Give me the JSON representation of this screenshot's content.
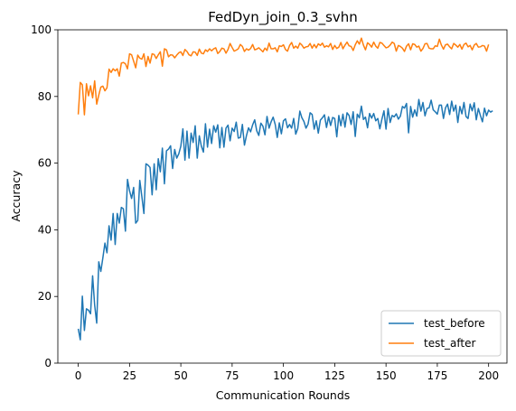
{
  "chart_data": {
    "type": "line",
    "title": "FedDyn_join_0.3_svhn",
    "xlabel": "Communication Rounds",
    "ylabel": "Accuracy",
    "xlim": [
      -9.95,
      208.95
    ],
    "ylim": [
      0,
      100
    ],
    "xticks": [
      0,
      25,
      50,
      75,
      100,
      125,
      150,
      175,
      200
    ],
    "yticks": [
      0,
      20,
      40,
      60,
      80,
      100
    ],
    "grid": false,
    "legend_position": "lower right",
    "series": [
      {
        "name": "test_before",
        "color": "#1f77b4",
        "values": [
          10.3,
          7.0,
          20.1,
          9.8,
          16.3,
          15.9,
          14.8,
          26.2,
          17.4,
          12.0,
          30.4,
          27.5,
          31.6,
          36.0,
          33.1,
          41.2,
          36.9,
          44.9,
          35.6,
          44.9,
          42.0,
          46.7,
          46.3,
          39.6,
          55.1,
          51.7,
          49.4,
          52.7,
          42.0,
          42.8,
          54.8,
          50.0,
          44.9,
          59.8,
          59.4,
          58.7,
          50.5,
          59.8,
          52.0,
          61.3,
          57.4,
          64.5,
          53.8,
          63.7,
          64.2,
          65.2,
          58.4,
          64.1,
          61.5,
          62.8,
          65.1,
          70.3,
          60.9,
          69.6,
          61.5,
          69.0,
          66.2,
          71.2,
          61.5,
          68.2,
          65.1,
          63.3,
          71.8,
          64.8,
          70.2,
          65.9,
          71.2,
          69.3,
          71.5,
          64.6,
          70.7,
          64.8,
          70.5,
          71.4,
          66.7,
          70.5,
          69.5,
          72.3,
          67.5,
          67.7,
          71.6,
          65.4,
          68.3,
          70.6,
          69.4,
          71.5,
          73.0,
          69.7,
          68.3,
          72.0,
          71.1,
          68.5,
          74.0,
          70.5,
          72.4,
          73.8,
          71.6,
          67.7,
          72.1,
          68.8,
          72.7,
          73.3,
          70.6,
          71.6,
          70.5,
          73.4,
          68.7,
          70.4,
          75.6,
          73.6,
          72.5,
          70.5,
          71.7,
          75.1,
          74.6,
          70.2,
          72.7,
          69.0,
          72.9,
          73.6,
          74.5,
          70.7,
          73.9,
          71.3,
          73.7,
          73.4,
          67.9,
          74.3,
          71.2,
          74.7,
          70.8,
          75.1,
          74.3,
          71.6,
          75.4,
          68.0,
          74.7,
          73.6,
          77.1,
          73.1,
          73.8,
          70.6,
          74.9,
          73.5,
          74.9,
          72.7,
          73.4,
          70.3,
          73.2,
          75.7,
          70.2,
          76.4,
          72.2,
          74.3,
          73.9,
          74.8,
          73.2,
          74.1,
          77.0,
          76.5,
          77.9,
          69.1,
          77.0,
          73.8,
          76.0,
          74.1,
          79.1,
          75.6,
          78.2,
          74.2,
          76.4,
          76.6,
          78.9,
          76.0,
          75.4,
          74.7,
          77.4,
          77.4,
          73.4,
          76.6,
          77.7,
          74.6,
          78.6,
          75.6,
          77.4,
          72.2,
          77.0,
          74.8,
          78.2,
          74.0,
          73.4,
          77.7,
          75.7,
          78.1,
          73.0,
          76.4,
          74.3,
          72.4,
          76.5,
          74.2,
          75.9,
          75.3,
          75.7
        ]
      },
      {
        "name": "test_after",
        "color": "#ff7f0e",
        "values": [
          74.6,
          84.2,
          83.5,
          74.5,
          83.8,
          80.2,
          83.2,
          79.6,
          84.7,
          77.7,
          80.4,
          82.8,
          83.1,
          81.7,
          82.6,
          88.2,
          87.2,
          88.3,
          87.7,
          88.3,
          86.1,
          90.0,
          90.2,
          89.8,
          88.3,
          92.8,
          92.5,
          90.6,
          88.6,
          92.4,
          91.5,
          91.2,
          92.8,
          89.0,
          92.0,
          90.0,
          92.8,
          92.6,
          91.4,
          92.5,
          93.4,
          89.1,
          94.3,
          94.0,
          91.9,
          92.5,
          92.4,
          91.6,
          92.4,
          93.1,
          93.4,
          92.3,
          94.1,
          93.5,
          92.5,
          92.2,
          93.4,
          93.3,
          92.3,
          94.2,
          93.0,
          92.8,
          94.0,
          93.5,
          94.3,
          93.7,
          94.3,
          94.6,
          92.9,
          93.5,
          94.5,
          94.3,
          93.0,
          94.1,
          95.9,
          94.7,
          93.6,
          93.9,
          94.3,
          95.6,
          95.0,
          93.5,
          94.3,
          93.9,
          94.4,
          95.6,
          94.0,
          94.2,
          94.6,
          94.0,
          93.4,
          94.5,
          93.8,
          96.0,
          94.3,
          94.3,
          94.6,
          93.4,
          95.2,
          95.0,
          95.5,
          94.1,
          93.6,
          95.3,
          96.2,
          94.5,
          95.1,
          94.5,
          96.0,
          95.4,
          94.5,
          94.9,
          95.0,
          95.9,
          94.5,
          95.6,
          94.6,
          95.8,
          95.3,
          96.0,
          94.8,
          95.2,
          94.9,
          95.9,
          94.1,
          95.3,
          94.4,
          94.8,
          96.2,
          94.3,
          95.4,
          96.3,
          95.2,
          95.0,
          93.8,
          95.5,
          96.7,
          95.7,
          97.5,
          95.4,
          94.0,
          96.1,
          95.6,
          94.8,
          96.3,
          95.1,
          94.5,
          96.2,
          96.0,
          95.3,
          94.6,
          94.8,
          95.4,
          96.3,
          95.9,
          93.6,
          95.3,
          95.0,
          94.5,
          93.5,
          95.1,
          95.8,
          94.0,
          95.8,
          95.6,
          94.8,
          95.1,
          93.6,
          94.4,
          95.8,
          95.9,
          94.5,
          94.3,
          94.3,
          95.2,
          95.0,
          97.2,
          95.4,
          94.2,
          95.5,
          95.7,
          94.9,
          94.3,
          95.9,
          95.4,
          94.8,
          95.6,
          94.2,
          95.6,
          96.0,
          94.9,
          95.3,
          94.0,
          95.4,
          95.9,
          94.8,
          94.9,
          95.3,
          95.1,
          93.6,
          95.6
        ]
      }
    ]
  }
}
